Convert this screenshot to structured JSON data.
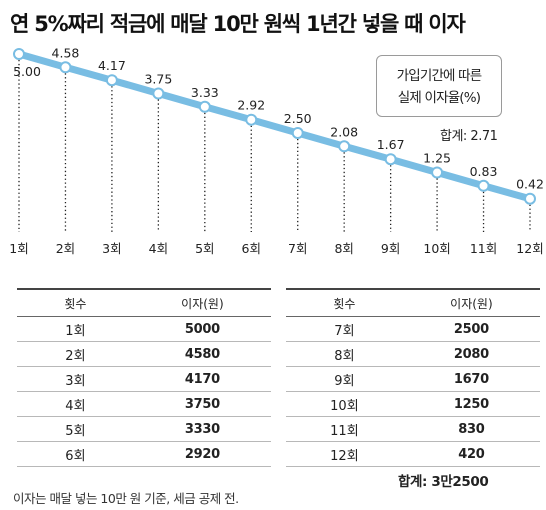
{
  "title": "연 5%짜리 적금에 매달 10만 원씩 1년간 넣을 때 이자",
  "legend": {
    "line1": "가입기간에 따른",
    "line2": "실제 이자율(%)"
  },
  "total_label": "합계: 2.71",
  "colors": {
    "line": "#79bde3",
    "marker_fill": "#ffffff",
    "marker_stroke": "#79bde3",
    "dotted_line": "#222222"
  },
  "chart_data": {
    "type": "line",
    "categories": [
      "1회",
      "2회",
      "3회",
      "4회",
      "5회",
      "6회",
      "7회",
      "8회",
      "9회",
      "10회",
      "11회",
      "12회"
    ],
    "values": [
      5.0,
      4.58,
      4.17,
      3.75,
      3.33,
      2.92,
      2.5,
      2.08,
      1.67,
      1.25,
      0.83,
      0.42
    ],
    "value_labels": [
      "5.00",
      "4.58",
      "4.17",
      "3.75",
      "3.33",
      "2.92",
      "2.50",
      "2.08",
      "1.67",
      "1.25",
      "0.83",
      "0.42"
    ],
    "ylim": [
      0,
      5
    ]
  },
  "table": {
    "headers": {
      "count": "횟수",
      "interest": "이자(원)"
    },
    "left_rows": [
      {
        "count": "1회",
        "interest": "5000"
      },
      {
        "count": "2회",
        "interest": "4580"
      },
      {
        "count": "3회",
        "interest": "4170"
      },
      {
        "count": "4회",
        "interest": "3750"
      },
      {
        "count": "5회",
        "interest": "3330"
      },
      {
        "count": "6회",
        "interest": "2920"
      }
    ],
    "right_rows": [
      {
        "count": "7회",
        "interest": "2500"
      },
      {
        "count": "8회",
        "interest": "2080"
      },
      {
        "count": "9회",
        "interest": "1670"
      },
      {
        "count": "10회",
        "interest": "1250"
      },
      {
        "count": "11회",
        "interest": "830"
      },
      {
        "count": "12회",
        "interest": "420"
      }
    ],
    "sum": "합계: 3만2500"
  },
  "footnote": "이자는 매달 넣는 10만 원 기준, 세금 공제 전."
}
